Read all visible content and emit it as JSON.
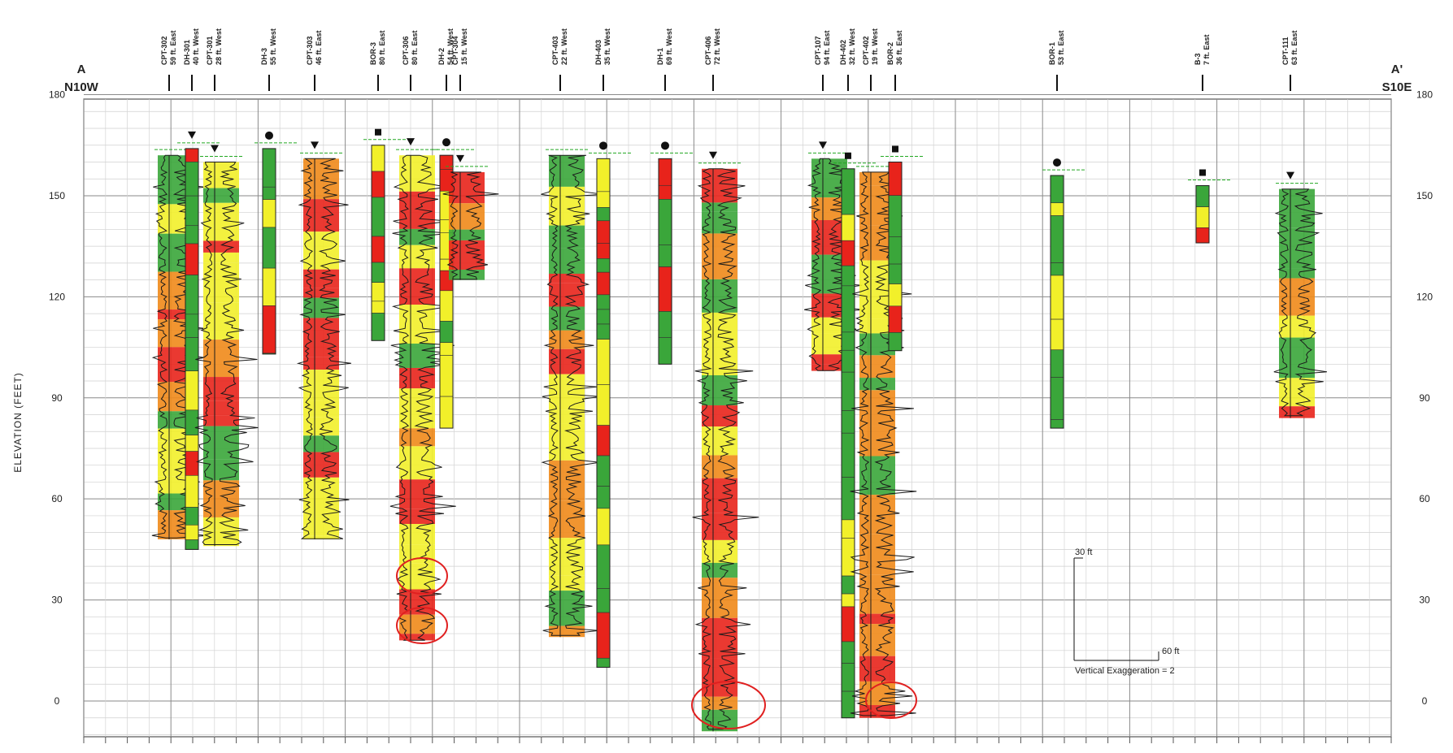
{
  "section": {
    "start_label": "A",
    "start_direction": "N10W",
    "end_label": "A'",
    "end_direction": "S10E",
    "y_axis_label": "ELEVATION (FEET)",
    "y_ticks": [
      180,
      150,
      120,
      90,
      60,
      30,
      0
    ],
    "y_range": [
      -10,
      180
    ]
  },
  "logs": [
    {
      "name": "CPT-302",
      "offset": "59 ft. East",
      "type": "cpt",
      "top": 162,
      "bottom": 48,
      "symbol": "none"
    },
    {
      "name": "DH-301",
      "offset": "40 ft. West",
      "type": "boring",
      "top": 164,
      "bottom": 45,
      "symbol": "triangle"
    },
    {
      "name": "CPT-301",
      "offset": "28 ft. West",
      "type": "cpt",
      "top": 160,
      "bottom": 46,
      "symbol": "triangle"
    },
    {
      "name": "DH-3",
      "offset": "55 ft. West",
      "type": "boring",
      "top": 164,
      "bottom": 103,
      "symbol": "circle"
    },
    {
      "name": "CPT-303",
      "offset": "46 ft. East",
      "type": "cpt",
      "top": 161,
      "bottom": 48,
      "symbol": "triangle"
    },
    {
      "name": "BOR-3",
      "offset": "80 ft. East",
      "type": "boring",
      "top": 165,
      "bottom": 107,
      "symbol": "square"
    },
    {
      "name": "CPT-306",
      "offset": "80 ft. East",
      "type": "cpt",
      "top": 162,
      "bottom": 18,
      "symbol": "triangle"
    },
    {
      "name": "DH-2",
      "offset": "54 ft. West",
      "type": "boring",
      "top": 162,
      "bottom": 81,
      "symbol": "circle"
    },
    {
      "name": "CPT-304",
      "offset": "15 ft. West",
      "type": "cpt",
      "top": 157,
      "bottom": 125,
      "symbol": "triangle"
    },
    {
      "name": "CPT-403",
      "offset": "22 ft. West",
      "type": "cpt",
      "top": 162,
      "bottom": 19,
      "symbol": "none"
    },
    {
      "name": "DH-403",
      "offset": "35 ft. West",
      "type": "boring",
      "top": 161,
      "bottom": 10,
      "symbol": "circle"
    },
    {
      "name": "DH-1",
      "offset": "69 ft. West",
      "type": "boring",
      "top": 161,
      "bottom": 100,
      "symbol": "circle"
    },
    {
      "name": "CPT-406",
      "offset": "72 ft. West",
      "type": "cpt",
      "top": 158,
      "bottom": -9,
      "symbol": "triangle"
    },
    {
      "name": "CPT-107",
      "offset": "94 ft. East",
      "type": "cpt",
      "top": 161,
      "bottom": 98,
      "symbol": "triangle"
    },
    {
      "name": "DH-402",
      "offset": "32 ft. West",
      "type": "boring",
      "top": 158,
      "bottom": -5,
      "symbol": "square"
    },
    {
      "name": "CPT-402",
      "offset": "19 ft. West",
      "type": "cpt",
      "top": 157,
      "bottom": -5,
      "symbol": "none"
    },
    {
      "name": "BOR-2",
      "offset": "36 ft. East",
      "type": "boring",
      "top": 160,
      "bottom": 104,
      "symbol": "square"
    },
    {
      "name": "BOR-1",
      "offset": "53 ft. East",
      "type": "boring",
      "top": 156,
      "bottom": 81,
      "symbol": "circle"
    },
    {
      "name": "B-3",
      "offset": "7 ft. East",
      "type": "boring",
      "top": 153,
      "bottom": 136,
      "symbol": "square"
    },
    {
      "name": "CPT-111",
      "offset": "63 ft. East",
      "type": "cpt",
      "top": 152,
      "bottom": 84,
      "symbol": "triangle"
    }
  ],
  "scale_bar": {
    "vertical_label": "30 ft",
    "horizontal_label": "60 ft",
    "exaggeration_label": "Vertical Exaggeration = 2"
  },
  "colors": {
    "sand": "#f2f02a",
    "silt": "#3aa63a",
    "clay": "#e8231b",
    "clayey": "#f08a1a",
    "grid": "#9a9a9a",
    "annotation": "#e02020",
    "water_level": "#22a822"
  }
}
